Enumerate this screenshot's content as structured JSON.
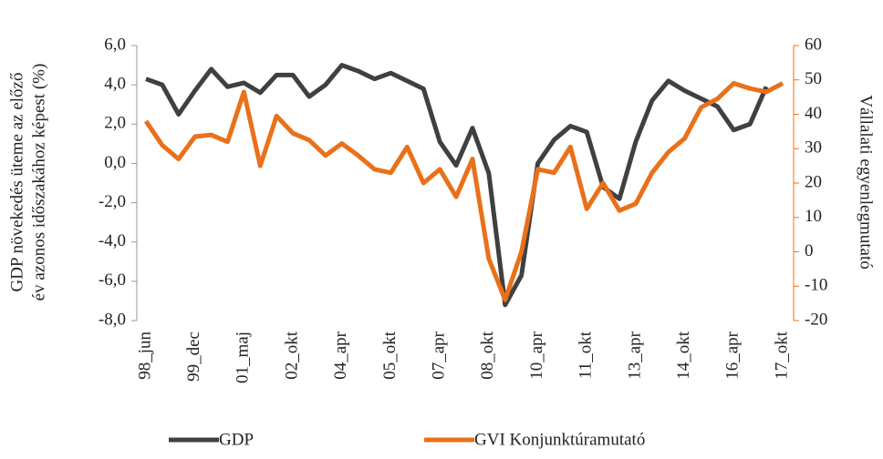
{
  "chart_data": {
    "type": "line",
    "y_label": [
      "GDP növekedés üteme az előző",
      "év azonos időszakához képest (%)"
    ],
    "y2_label": "Vállalati egyenlegmutató",
    "categories": [
      "98_jun",
      null,
      null,
      "99_dec",
      null,
      null,
      "01_maj",
      null,
      null,
      "02_okt",
      null,
      null,
      "04_apr",
      null,
      null,
      "05_okt",
      null,
      null,
      "07_apr",
      null,
      null,
      "08_okt",
      null,
      null,
      "10_apr",
      null,
      null,
      "11_okt",
      null,
      null,
      "13_apr",
      null,
      null,
      "14_okt",
      null,
      null,
      "16_apr",
      null,
      null,
      "17_okt"
    ],
    "series": [
      {
        "name": "GDP",
        "color": "#404040",
        "values": [
          4.3,
          4.0,
          2.5,
          3.7,
          4.8,
          3.9,
          4.1,
          3.6,
          4.5,
          4.5,
          3.4,
          4.0,
          5.0,
          4.7,
          4.3,
          4.6,
          4.2,
          3.8,
          1.1,
          -0.1,
          1.8,
          -0.5,
          -7.2,
          -5.7,
          0.0,
          1.2,
          1.9,
          1.6,
          -1.2,
          -1.8,
          1.1,
          3.2,
          4.2,
          3.7,
          3.3,
          2.9,
          1.7,
          2.0,
          3.9,
          null
        ]
      },
      {
        "name": "GVI Konjunktúramutató",
        "color": "#e8711a",
        "axis": "y2",
        "values": [
          38,
          31,
          27,
          33.5,
          34,
          32,
          46.5,
          25,
          39.5,
          34.5,
          32.5,
          28,
          31.5,
          28,
          24,
          23,
          30.5,
          20,
          24,
          16,
          27,
          -2,
          -14,
          0,
          24,
          23,
          30.5,
          12.5,
          20,
          12,
          14,
          23,
          29,
          33,
          42,
          44.5,
          49,
          47.5,
          46.5,
          49
        ]
      }
    ],
    "ylim": [
      -8,
      6
    ],
    "yticks": [
      {
        "value": -8,
        "label": "-8,0"
      },
      {
        "value": -6,
        "label": "-6,0"
      },
      {
        "value": -4,
        "label": "-4,0"
      },
      {
        "value": -2,
        "label": "-2,0"
      },
      {
        "value": 0,
        "label": "0,0"
      },
      {
        "value": 2,
        "label": "2,0"
      },
      {
        "value": 4,
        "label": "4,0"
      },
      {
        "value": 6,
        "label": "6,0"
      }
    ],
    "y2lim": [
      -20,
      60
    ],
    "y2ticks": [
      -20,
      -10,
      0,
      10,
      20,
      30,
      40,
      50,
      60
    ],
    "legend": "bottom"
  }
}
